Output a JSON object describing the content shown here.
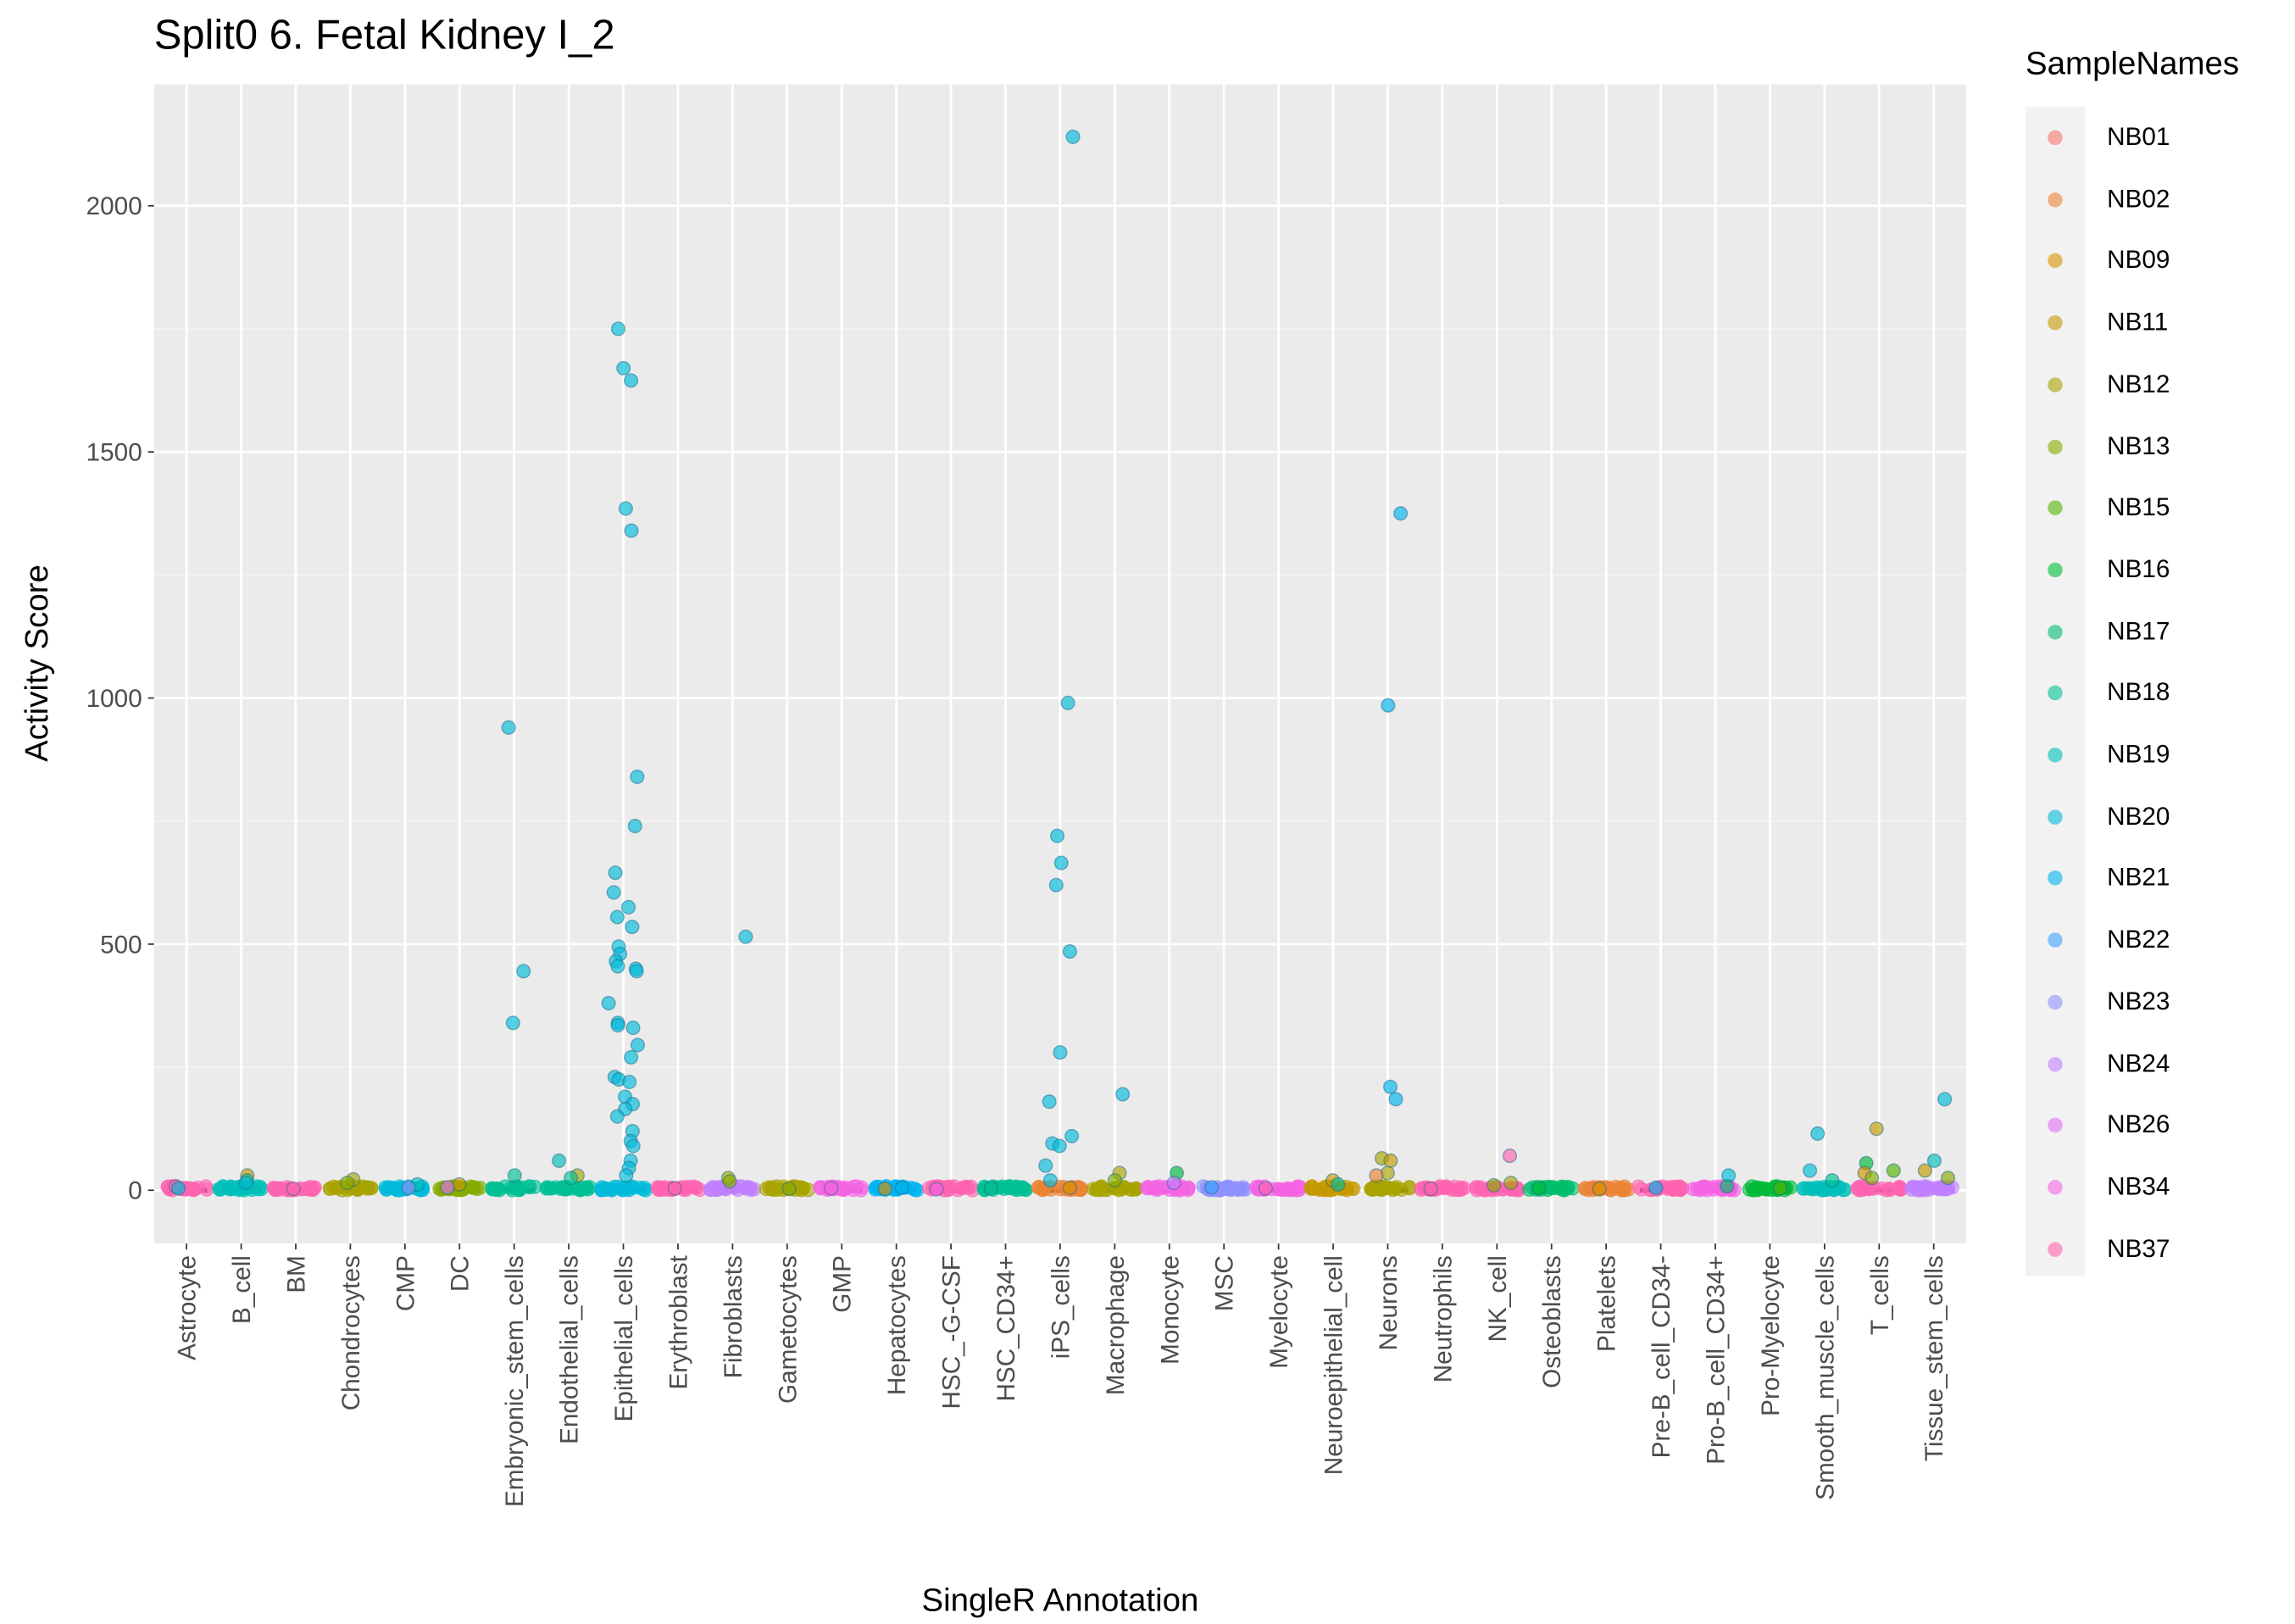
{
  "chart_data": {
    "type": "scatter",
    "title": "Split0 6. Fetal Kidney I_2",
    "xlabel": "SingleR Annotation",
    "ylabel": "Activity Score",
    "ylim": [
      -108,
      2247
    ],
    "yticks": [
      0,
      500,
      1000,
      1500,
      2000
    ],
    "grid": true,
    "legend_title": "SampleNames",
    "legend_position": "right",
    "samples": [
      "NB01",
      "NB02",
      "NB09",
      "NB11",
      "NB12",
      "NB13",
      "NB15",
      "NB16",
      "NB17",
      "NB18",
      "NB19",
      "NB20",
      "NB21",
      "NB22",
      "NB23",
      "NB24",
      "NB26",
      "NB34",
      "NB37"
    ],
    "colors": [
      "#F8766D",
      "#EB8335",
      "#DA8F00",
      "#C49A00",
      "#A9A400",
      "#86AC00",
      "#53B400",
      "#00BA38",
      "#00BE6C",
      "#00C094",
      "#00BFB9",
      "#00BBDA",
      "#00B4F0",
      "#3AA2FF",
      "#8F91FF",
      "#BF80FF",
      "#E16EF6",
      "#F564E3",
      "#FF64B0"
    ],
    "categories": [
      "Astrocyte",
      "B_cell",
      "BM",
      "Chondrocytes",
      "CMP",
      "DC",
      "Embryonic_stem_cells",
      "Endothelial_cells",
      "Epithelial_cells",
      "Erythroblast",
      "Fibroblasts",
      "Gametocytes",
      "GMP",
      "Hepatocytes",
      "HSC_-G-CSF",
      "HSC_CD34+",
      "iPS_cells",
      "Macrophage",
      "Monocyte",
      "MSC",
      "Myelocyte",
      "Neuroepithelial_cell",
      "Neurons",
      "Neutrophils",
      "NK_cell",
      "Osteoblasts",
      "Platelets",
      "Pre-B_cell_CD34-",
      "Pro-B_cell_CD34+",
      "Pro-Myelocyte",
      "Smooth_muscle_cells",
      "T_cells",
      "Tissue_stem_cells"
    ],
    "baseline_sample": [
      18,
      10,
      18,
      4,
      11,
      5,
      9,
      9,
      11,
      18,
      15,
      4,
      17,
      12,
      18,
      9,
      1,
      4,
      17,
      14,
      17,
      3,
      4,
      18,
      18,
      8,
      1,
      18,
      17,
      7,
      10,
      18,
      15
    ],
    "points": [
      [
        [
          18,
          8
        ],
        [
          11,
          4
        ]
      ],
      [
        [
          3,
          30
        ],
        [
          9,
          20
        ],
        [
          11,
          15
        ]
      ],
      [
        [
          18,
          3
        ]
      ],
      [
        [
          4,
          22
        ],
        [
          5,
          15
        ]
      ],
      [
        [
          10,
          12
        ],
        [
          14,
          5
        ]
      ],
      [
        [
          3,
          12
        ],
        [
          16,
          6
        ]
      ],
      [
        [
          11,
          940
        ],
        [
          11,
          445
        ],
        [
          11,
          340
        ],
        [
          9,
          30
        ]
      ],
      [
        [
          10,
          60
        ],
        [
          4,
          30
        ],
        [
          9,
          25
        ]
      ],
      [
        [
          11,
          1750
        ],
        [
          11,
          1670
        ],
        [
          11,
          1645
        ],
        [
          11,
          1385
        ],
        [
          11,
          1340
        ],
        [
          11,
          840
        ],
        [
          11,
          740
        ],
        [
          11,
          645
        ],
        [
          11,
          605
        ],
        [
          11,
          575
        ],
        [
          11,
          555
        ],
        [
          11,
          535
        ],
        [
          11,
          495
        ],
        [
          11,
          480
        ],
        [
          11,
          465
        ],
        [
          11,
          455
        ],
        [
          11,
          450
        ],
        [
          11,
          445
        ],
        [
          11,
          380
        ],
        [
          11,
          340
        ],
        [
          11,
          335
        ],
        [
          11,
          330
        ],
        [
          11,
          295
        ],
        [
          11,
          270
        ],
        [
          11,
          230
        ],
        [
          11,
          225
        ],
        [
          11,
          220
        ],
        [
          11,
          190
        ],
        [
          11,
          175
        ],
        [
          11,
          165
        ],
        [
          11,
          150
        ],
        [
          11,
          120
        ],
        [
          11,
          100
        ],
        [
          11,
          90
        ],
        [
          11,
          60
        ],
        [
          11,
          45
        ],
        [
          11,
          30
        ]
      ],
      [
        [
          18,
          4
        ]
      ],
      [
        [
          11,
          515
        ],
        [
          4,
          25
        ],
        [
          5,
          18
        ]
      ],
      [
        [
          5,
          3
        ]
      ],
      [
        [
          17,
          4
        ]
      ],
      [
        [
          12,
          5
        ],
        [
          2,
          3
        ]
      ],
      [
        [
          17,
          2
        ]
      ],
      [
        [
          9,
          4
        ]
      ],
      [
        [
          11,
          2140
        ],
        [
          11,
          990
        ],
        [
          11,
          720
        ],
        [
          11,
          665
        ],
        [
          11,
          620
        ],
        [
          11,
          485
        ],
        [
          11,
          280
        ],
        [
          11,
          180
        ],
        [
          11,
          110
        ],
        [
          11,
          95
        ],
        [
          11,
          90
        ],
        [
          11,
          50
        ],
        [
          11,
          20
        ],
        [
          2,
          5
        ]
      ],
      [
        [
          11,
          195
        ],
        [
          4,
          35
        ],
        [
          5,
          20
        ]
      ],
      [
        [
          7,
          35
        ],
        [
          15,
          15
        ]
      ],
      [
        [
          13,
          6
        ]
      ],
      [
        [
          18,
          4
        ]
      ],
      [
        [
          3,
          20
        ],
        [
          9,
          12
        ]
      ],
      [
        [
          12,
          1375
        ],
        [
          12,
          985
        ],
        [
          12,
          210
        ],
        [
          12,
          185
        ],
        [
          4,
          65
        ],
        [
          3,
          60
        ],
        [
          4,
          35
        ],
        [
          1,
          30
        ]
      ],
      [
        [
          18,
          3
        ]
      ],
      [
        [
          18,
          70
        ],
        [
          4,
          15
        ],
        [
          5,
          10
        ]
      ],
      [
        [
          7,
          4
        ]
      ],
      [
        [
          2,
          3
        ]
      ],
      [
        [
          12,
          5
        ]
      ],
      [
        [
          11,
          30
        ],
        [
          8,
          8
        ]
      ],
      [
        [
          6,
          4
        ]
      ],
      [
        [
          11,
          115
        ],
        [
          11,
          40
        ],
        [
          9,
          20
        ]
      ],
      [
        [
          3,
          125
        ],
        [
          7,
          55
        ],
        [
          6,
          40
        ],
        [
          2,
          35
        ],
        [
          5,
          25
        ]
      ],
      [
        [
          11,
          185
        ],
        [
          10,
          60
        ],
        [
          3,
          40
        ],
        [
          5,
          25
        ]
      ]
    ]
  }
}
